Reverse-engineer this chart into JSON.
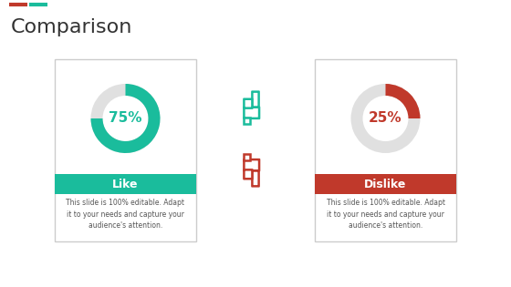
{
  "title": "Comparison",
  "title_fontsize": 16,
  "title_color": "#333333",
  "background_color": "#ffffff",
  "left_card": {
    "value": 75,
    "label": "Like",
    "donut_color": "#1abc9c",
    "donut_bg": "#e0e0e0",
    "btn_color": "#1abc9c",
    "text_color": "#ffffff",
    "desc": "This slide is 100% editable. Adapt\nit to your needs and capture your\naudience's attention.",
    "desc_color": "#555555"
  },
  "right_card": {
    "value": 25,
    "label": "Dislike",
    "donut_color": "#c0392b",
    "donut_bg": "#e0e0e0",
    "btn_color": "#c0392b",
    "text_color": "#ffffff",
    "desc": "This slide is 100% editable. Adapt\nit to your needs and capture your\naudience's attention.",
    "desc_color": "#555555"
  },
  "card_border_color": "#cccccc",
  "icon_color_like": "#1abc9c",
  "icon_color_dislike": "#c0392b",
  "top_bar_colors": [
    "#c0392b",
    "#1abc9c"
  ]
}
